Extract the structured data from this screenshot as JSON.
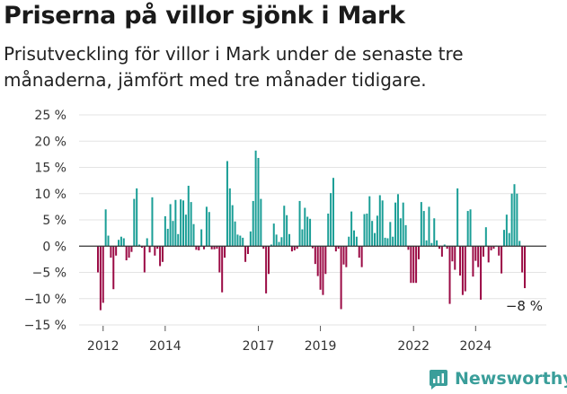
{
  "header": {
    "title": "Priserna på villor sjönk i Mark",
    "subtitle": "Prisutveckling för villor i Mark under de senaste tre månaderna, jämfört med tre månader tidigare."
  },
  "brand": {
    "name": "Newsworthy",
    "logo_icon": "newsworthy-logo-icon"
  },
  "colors": {
    "positive": "#1a9e96",
    "negative": "#9b0b45",
    "grid": "#e3e3e3",
    "zero_line": "#333333"
  },
  "chart_data": {
    "type": "bar",
    "title": "Priserna på villor sjönk i Mark",
    "xlabel": "",
    "ylabel": "",
    "ylim": [
      -15,
      25
    ],
    "y_ticks": [
      25,
      20,
      15,
      10,
      5,
      0,
      -5,
      -10,
      -15
    ],
    "y_tick_labels": [
      "25 %",
      "20 %",
      "15 %",
      "10 %",
      "5 %",
      "0 %",
      "−5 %",
      "−10 %",
      "−15 %"
    ],
    "x_ticks": [
      {
        "label": "2012",
        "index": 2
      },
      {
        "label": "2014",
        "index": 26
      },
      {
        "label": "2017",
        "index": 62
      },
      {
        "label": "2019",
        "index": 86
      },
      {
        "label": "2022",
        "index": 122
      },
      {
        "label": "2024",
        "index": 146
      }
    ],
    "annotation": {
      "text": "−8 %",
      "index": 155
    },
    "grid": true,
    "legend": "none",
    "values": [
      -5,
      -12.2,
      -10.8,
      7,
      2,
      -2.2,
      -8.2,
      -1.8,
      1.2,
      1.8,
      1.5,
      -2.7,
      -2.2,
      -1.1,
      9,
      11,
      0.3,
      -0.3,
      -5,
      1.5,
      -1.2,
      9.3,
      -1.8,
      -0.5,
      -3.8,
      -3,
      5.7,
      3.3,
      8,
      4.8,
      8.8,
      2.3,
      8.9,
      8.7,
      6,
      11.5,
      8.4,
      4.2,
      -0.7,
      -0.8,
      3.2,
      -0.6,
      7.5,
      6.5,
      -0.6,
      -0.6,
      -0.5,
      -5,
      -8.8,
      -2.2,
      16.2,
      11,
      7.8,
      4.7,
      2.2,
      2,
      1.6,
      -3,
      -1.5,
      2.8,
      8.6,
      18.2,
      16.8,
      9,
      -0.5,
      -9,
      -5.3,
      0.3,
      4.3,
      2.2,
      0.8,
      1.7,
      7.7,
      5.9,
      2.3,
      -1,
      -0.8,
      -0.5,
      8.6,
      3.2,
      7.3,
      5.6,
      5.2,
      -0.4,
      -3.4,
      -5.7,
      -8.3,
      -9.3,
      -5.3,
      6.2,
      10.1,
      13,
      -1,
      -0.5,
      -12,
      -3.5,
      -4,
      1.8,
      6.6,
      3,
      1.8,
      -2.2,
      -4,
      6.1,
      6.2,
      9.5,
      4.8,
      2.5,
      5.8,
      9.7,
      8.7,
      1.6,
      1.5,
      4.6,
      1.8,
      8.3,
      9.9,
      5.3,
      8.3,
      4,
      -0.7,
      -7,
      -7,
      -7,
      -2.5,
      8.4,
      6.7,
      1.1,
      7.5,
      0.6,
      5.3,
      1.1,
      -0.5,
      -2,
      0.3,
      -0.5,
      -11,
      -2.9,
      -4.5,
      11,
      -5.6,
      -9.3,
      -8.6,
      6.7,
      7,
      -5.8,
      -2.8,
      -4,
      -10.2,
      -2,
      3.6,
      -3.1,
      -0.8,
      -0.5,
      0.1,
      -1.8,
      -5.2,
      3.1,
      6,
      2.5,
      10,
      11.8,
      10,
      1,
      -5,
      -8
    ]
  }
}
